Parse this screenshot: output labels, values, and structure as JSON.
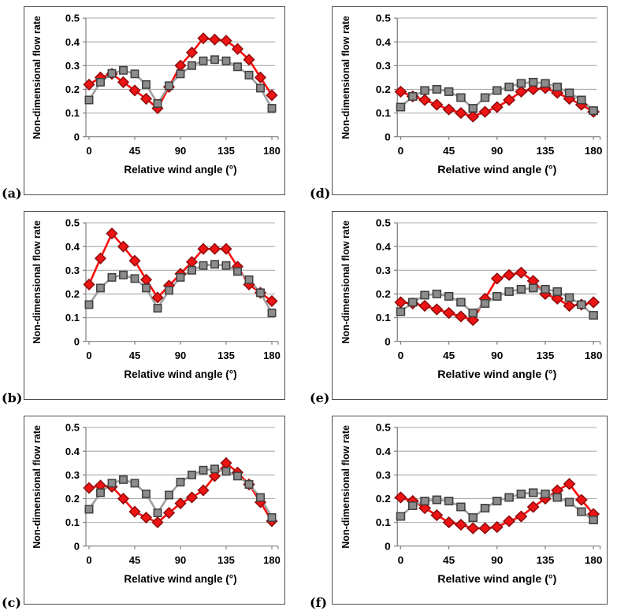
{
  "figure": {
    "background": "#ffffff",
    "axes": {
      "xlabel": "Relative wind angle (°)",
      "ylabel": "Non-dimensional flow rate",
      "xlim": [
        0,
        180
      ],
      "ylim": [
        0,
        0.5
      ],
      "x_ticks": [
        "0",
        "45",
        "90",
        "135",
        "180"
      ],
      "y_ticks": [
        "0",
        "0.1",
        "0.2",
        "0.3",
        "0.4",
        "0.5"
      ],
      "grid": "horizontal",
      "legend": "none"
    },
    "colors": {
      "red_series_fill": "#ee1414",
      "red_series_border": "#8d0b0b",
      "red_series_line": "#fb0e0e",
      "gray_series_fill": "#8c8c8c",
      "gray_series_border": "#3f3f3f",
      "gray_series_line": "#a0a0a0",
      "gridline": "#a9a9a9",
      "axis_line": "#7f7f7f",
      "panel_border": "#4d4d4d",
      "text": "#000000"
    }
  },
  "chart_data": [
    {
      "panel": "a",
      "label": "(a)",
      "type": "line",
      "xlabel": "Relative wind angle (°)",
      "ylabel": "Non-dimensional flow rate",
      "xlim": [
        0,
        180
      ],
      "ylim": [
        0,
        0.5
      ],
      "x": [
        0,
        11.25,
        22.5,
        33.75,
        45,
        56.25,
        67.5,
        78.75,
        90,
        101.25,
        112.5,
        123.75,
        135,
        146.25,
        157.5,
        168.75,
        180
      ],
      "series": [
        {
          "name": "red-diamond-series",
          "marker": "diamond",
          "values": [
            0.22,
            0.25,
            0.265,
            0.23,
            0.195,
            0.16,
            0.12,
            0.21,
            0.3,
            0.355,
            0.415,
            0.41,
            0.405,
            0.37,
            0.325,
            0.25,
            0.175
          ]
        },
        {
          "name": "gray-square-series",
          "marker": "square",
          "values": [
            0.155,
            0.23,
            0.267,
            0.28,
            0.265,
            0.22,
            0.14,
            0.215,
            0.265,
            0.3,
            0.32,
            0.325,
            0.32,
            0.295,
            0.26,
            0.205,
            0.12
          ]
        }
      ]
    },
    {
      "panel": "b",
      "label": "(b)",
      "type": "line",
      "xlabel": "Relative wind angle (°)",
      "ylabel": "Non-dimensional flow rate",
      "xlim": [
        0,
        180
      ],
      "ylim": [
        0,
        0.5
      ],
      "x": [
        0,
        11.25,
        22.5,
        33.75,
        45,
        56.25,
        67.5,
        78.75,
        90,
        101.25,
        112.5,
        123.75,
        135,
        146.25,
        157.5,
        168.75,
        180
      ],
      "series": [
        {
          "name": "red-diamond-series",
          "marker": "diamond",
          "values": [
            0.24,
            0.35,
            0.455,
            0.4,
            0.34,
            0.26,
            0.185,
            0.235,
            0.285,
            0.335,
            0.39,
            0.39,
            0.39,
            0.315,
            0.24,
            0.205,
            0.17
          ]
        },
        {
          "name": "gray-square-series",
          "marker": "square",
          "values": [
            0.155,
            0.225,
            0.27,
            0.28,
            0.265,
            0.225,
            0.14,
            0.215,
            0.27,
            0.3,
            0.32,
            0.325,
            0.32,
            0.295,
            0.26,
            0.205,
            0.12
          ]
        }
      ]
    },
    {
      "panel": "c",
      "label": "(c)",
      "type": "line",
      "xlabel": "Relative wind angle (°)",
      "ylabel": "Non-dimensional flow rate",
      "xlim": [
        0,
        180
      ],
      "ylim": [
        0,
        0.5
      ],
      "x": [
        0,
        11.25,
        22.5,
        33.75,
        45,
        56.25,
        67.5,
        78.75,
        90,
        101.25,
        112.5,
        123.75,
        135,
        146.25,
        157.5,
        168.75,
        180
      ],
      "series": [
        {
          "name": "red-diamond-series",
          "marker": "diamond",
          "values": [
            0.245,
            0.255,
            0.25,
            0.2,
            0.145,
            0.12,
            0.1,
            0.14,
            0.18,
            0.205,
            0.235,
            0.295,
            0.35,
            0.31,
            0.26,
            0.185,
            0.105
          ]
        },
        {
          "name": "gray-square-series",
          "marker": "square",
          "values": [
            0.155,
            0.225,
            0.265,
            0.28,
            0.265,
            0.22,
            0.14,
            0.215,
            0.27,
            0.3,
            0.32,
            0.325,
            0.315,
            0.295,
            0.26,
            0.205,
            0.12
          ]
        }
      ]
    },
    {
      "panel": "d",
      "label": "(d)",
      "type": "line",
      "xlabel": "Relative wind angle (°)",
      "ylabel": "Non-dimensional flow rate",
      "xlim": [
        0,
        180
      ],
      "ylim": [
        0,
        0.5
      ],
      "x": [
        0,
        11.25,
        22.5,
        33.75,
        45,
        56.25,
        67.5,
        78.75,
        90,
        101.25,
        112.5,
        123.75,
        135,
        146.25,
        157.5,
        168.75,
        180
      ],
      "series": [
        {
          "name": "red-diamond-series",
          "marker": "diamond",
          "values": [
            0.19,
            0.17,
            0.155,
            0.135,
            0.115,
            0.1,
            0.085,
            0.105,
            0.125,
            0.155,
            0.19,
            0.2,
            0.205,
            0.185,
            0.16,
            0.135,
            0.105
          ]
        },
        {
          "name": "gray-square-series",
          "marker": "square",
          "values": [
            0.125,
            0.17,
            0.195,
            0.2,
            0.19,
            0.165,
            0.12,
            0.165,
            0.195,
            0.21,
            0.225,
            0.23,
            0.225,
            0.21,
            0.185,
            0.155,
            0.11
          ]
        }
      ]
    },
    {
      "panel": "e",
      "label": "(e)",
      "type": "line",
      "xlabel": "Relative wind angle (°)",
      "ylabel": "Non-dimensional flow rate",
      "xlim": [
        0,
        180
      ],
      "ylim": [
        0,
        0.5
      ],
      "x": [
        0,
        11.25,
        22.5,
        33.75,
        45,
        56.25,
        67.5,
        78.75,
        90,
        101.25,
        112.5,
        123.75,
        135,
        146.25,
        157.5,
        168.75,
        180
      ],
      "series": [
        {
          "name": "red-diamond-series",
          "marker": "diamond",
          "values": [
            0.165,
            0.16,
            0.15,
            0.135,
            0.12,
            0.105,
            0.09,
            0.18,
            0.265,
            0.28,
            0.29,
            0.255,
            0.2,
            0.18,
            0.15,
            0.155,
            0.165
          ]
        },
        {
          "name": "gray-square-series",
          "marker": "square",
          "values": [
            0.125,
            0.165,
            0.195,
            0.2,
            0.19,
            0.165,
            0.12,
            0.16,
            0.19,
            0.21,
            0.22,
            0.225,
            0.22,
            0.21,
            0.185,
            0.155,
            0.11
          ]
        }
      ]
    },
    {
      "panel": "f",
      "label": "(f)",
      "type": "line",
      "xlabel": "Relative wind angle (°)",
      "ylabel": "Non-dimensional flow rate",
      "xlim": [
        0,
        180
      ],
      "ylim": [
        0,
        0.5
      ],
      "x": [
        0,
        11.25,
        22.5,
        33.75,
        45,
        56.25,
        67.5,
        78.75,
        90,
        101.25,
        112.5,
        123.75,
        135,
        146.25,
        157.5,
        168.75,
        180
      ],
      "series": [
        {
          "name": "red-diamond-series",
          "marker": "diamond",
          "values": [
            0.205,
            0.19,
            0.16,
            0.13,
            0.1,
            0.09,
            0.075,
            0.075,
            0.08,
            0.105,
            0.125,
            0.165,
            0.2,
            0.235,
            0.262,
            0.195,
            0.135
          ]
        },
        {
          "name": "gray-square-series",
          "marker": "square",
          "values": [
            0.125,
            0.17,
            0.19,
            0.195,
            0.19,
            0.165,
            0.12,
            0.16,
            0.19,
            0.205,
            0.22,
            0.225,
            0.22,
            0.205,
            0.185,
            0.145,
            0.11
          ]
        }
      ]
    }
  ]
}
